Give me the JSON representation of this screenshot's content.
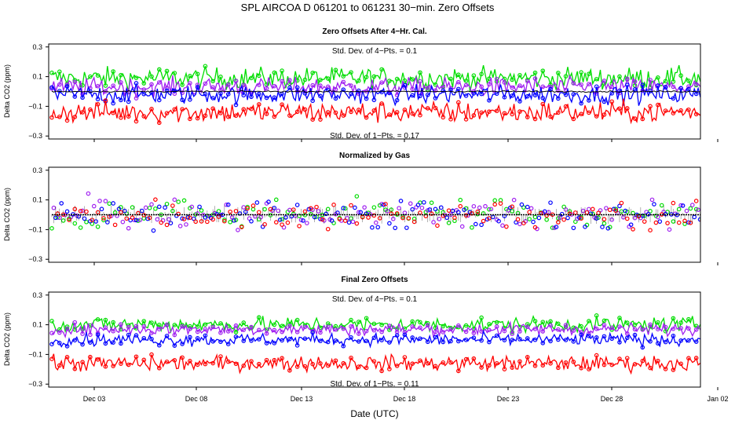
{
  "figure": {
    "title": "SPL    AIRCOA D    061201 to 061231    30−min. Zero Offsets",
    "xlabel": "Date (UTC)"
  },
  "chart_data": [
    {
      "type": "line",
      "title": "Zero Offsets After 4−Hr. Cal.",
      "ylabel": "Delta CO2 (ppm)",
      "ylim": [
        -0.32,
        0.32
      ],
      "yticks": [
        "0.3",
        "0.1",
        "−0.1",
        "−0.3"
      ],
      "xticks": [
        "Dec 03",
        "Dec 08",
        "Dec 13",
        "Dec 18",
        "Dec 23",
        "Dec 28",
        "Jan 02"
      ],
      "annotations": [
        "Std. Dev. of 4−Pts. = 0.1",
        "Std. Dev. of 1−Pts. = 0.17"
      ],
      "series": [
        {
          "name": "green",
          "color": "#00dd00",
          "mean": 0.09,
          "spread": 0.07
        },
        {
          "name": "purple",
          "color": "#a020f0",
          "mean": 0.03,
          "spread": 0.06
        },
        {
          "name": "blue",
          "color": "#0000ff",
          "mean": -0.02,
          "spread": 0.06
        },
        {
          "name": "red",
          "color": "#ff0000",
          "mean": -0.14,
          "spread": 0.07
        },
        {
          "name": "black",
          "color": "#000000",
          "mean": 0.0,
          "spread": 0.005
        }
      ]
    },
    {
      "type": "scatter",
      "title": "Normalized by Gas",
      "ylabel": "Delta CO2 (ppm)",
      "ylim": [
        -0.32,
        0.32
      ],
      "yticks": [
        "0.3",
        "0.1",
        "−0.1",
        "−0.3"
      ],
      "xticks": [
        "Dec 03",
        "Dec 08",
        "Dec 13",
        "Dec 18",
        "Dec 23",
        "Dec 28",
        "Jan 02"
      ],
      "series": [
        {
          "name": "green",
          "color": "#00dd00",
          "mean": 0.0,
          "spread": 0.1
        },
        {
          "name": "purple",
          "color": "#a020f0",
          "mean": 0.0,
          "spread": 0.1
        },
        {
          "name": "blue",
          "color": "#0000ff",
          "mean": 0.0,
          "spread": 0.1
        },
        {
          "name": "red",
          "color": "#ff0000",
          "mean": 0.0,
          "spread": 0.1
        },
        {
          "name": "black",
          "color": "#000000",
          "mean": 0.0,
          "spread": 0.06
        }
      ]
    },
    {
      "type": "line",
      "title": "Final Zero Offsets",
      "ylabel": "Delta CO2 (ppm)",
      "ylim": [
        -0.32,
        0.32
      ],
      "yticks": [
        "0.3",
        "0.1",
        "−0.1",
        "−0.3"
      ],
      "xticks": [
        "Dec 03",
        "Dec 08",
        "Dec 13",
        "Dec 18",
        "Dec 23",
        "Dec 28",
        "Jan 02"
      ],
      "annotations": [
        "Std. Dev. of 4−Pts. = 0.1",
        "Std. Dev. of 1−Pts. = 0.11"
      ],
      "series": [
        {
          "name": "green",
          "color": "#00dd00",
          "mean": 0.1,
          "spread": 0.05
        },
        {
          "name": "purple",
          "color": "#a020f0",
          "mean": 0.07,
          "spread": 0.04
        },
        {
          "name": "blue",
          "color": "#0000ff",
          "mean": 0.0,
          "spread": 0.04
        },
        {
          "name": "red",
          "color": "#ff0000",
          "mean": -0.16,
          "spread": 0.05
        }
      ]
    }
  ]
}
